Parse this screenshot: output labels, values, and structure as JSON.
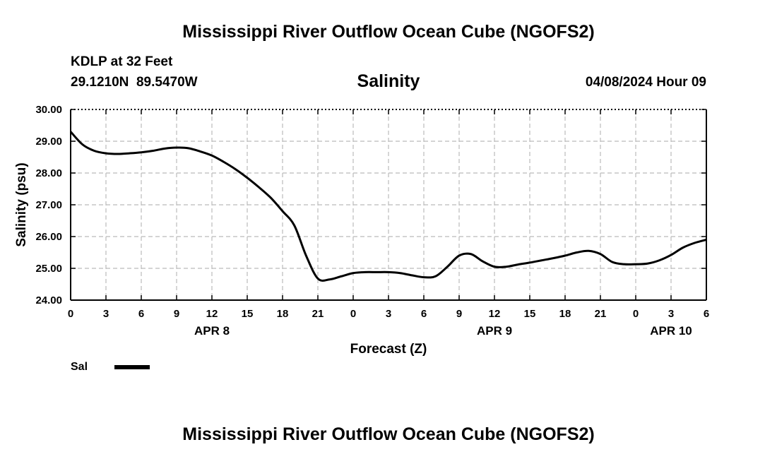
{
  "page": {
    "top_title": "Mississippi River Outflow Ocean Cube (NGOFS2)",
    "bottom_title": "Mississippi River Outflow Ocean Cube (NGOFS2)",
    "station_line": "KDLP at 32 Feet",
    "coords_line": "29.1210N  89.5470W",
    "datetime": "04/08/2024 Hour 09"
  },
  "legend": {
    "label": "Sal",
    "color": "#000000"
  },
  "chart_data": {
    "type": "line",
    "title": "Salinity",
    "xlabel": "Forecast (Z)",
    "ylabel": "Salinity (psu)",
    "xlim": [
      0,
      54
    ],
    "ylim": [
      24.0,
      30.0
    ],
    "x_ticks": [
      0,
      3,
      6,
      9,
      12,
      15,
      18,
      21,
      24,
      27,
      30,
      33,
      36,
      39,
      42,
      45,
      48,
      51,
      54
    ],
    "x_tick_labels": [
      "0",
      "3",
      "6",
      "9",
      "12",
      "15",
      "18",
      "21",
      "0",
      "3",
      "6",
      "9",
      "12",
      "15",
      "18",
      "21",
      "0",
      "3",
      "6"
    ],
    "y_ticks": [
      24.0,
      25.0,
      26.0,
      27.0,
      28.0,
      29.0,
      30.0
    ],
    "y_tick_labels": [
      "24.00",
      "25.00",
      "26.00",
      "27.00",
      "28.00",
      "29.00",
      "30.00"
    ],
    "date_labels": [
      {
        "x": 12,
        "label": "APR 8"
      },
      {
        "x": 36,
        "label": "APR 9"
      },
      {
        "x": 51,
        "label": "APR 10"
      }
    ],
    "grid": true,
    "series": [
      {
        "name": "Sal",
        "x": [
          0,
          1,
          2,
          3,
          4,
          5,
          6,
          7,
          8,
          9,
          10,
          11,
          12,
          13,
          14,
          15,
          16,
          17,
          18,
          19,
          20,
          21,
          22,
          23,
          24,
          25,
          26,
          27,
          28,
          29,
          30,
          31,
          32,
          33,
          34,
          35,
          36,
          37,
          38,
          39,
          40,
          41,
          42,
          43,
          44,
          45,
          46,
          47,
          48,
          49,
          50,
          51,
          52,
          53,
          54
        ],
        "values": [
          29.3,
          28.9,
          28.7,
          28.62,
          28.6,
          28.62,
          28.65,
          28.7,
          28.77,
          28.8,
          28.78,
          28.68,
          28.55,
          28.35,
          28.12,
          27.85,
          27.55,
          27.22,
          26.8,
          26.35,
          25.4,
          24.68,
          24.65,
          24.75,
          24.85,
          24.88,
          24.88,
          24.88,
          24.85,
          24.78,
          24.72,
          24.75,
          25.05,
          25.4,
          25.45,
          25.22,
          25.05,
          25.05,
          25.12,
          25.18,
          25.25,
          25.32,
          25.4,
          25.5,
          25.55,
          25.45,
          25.2,
          25.13,
          25.13,
          25.15,
          25.25,
          25.42,
          25.65,
          25.8,
          25.9
        ]
      }
    ]
  }
}
